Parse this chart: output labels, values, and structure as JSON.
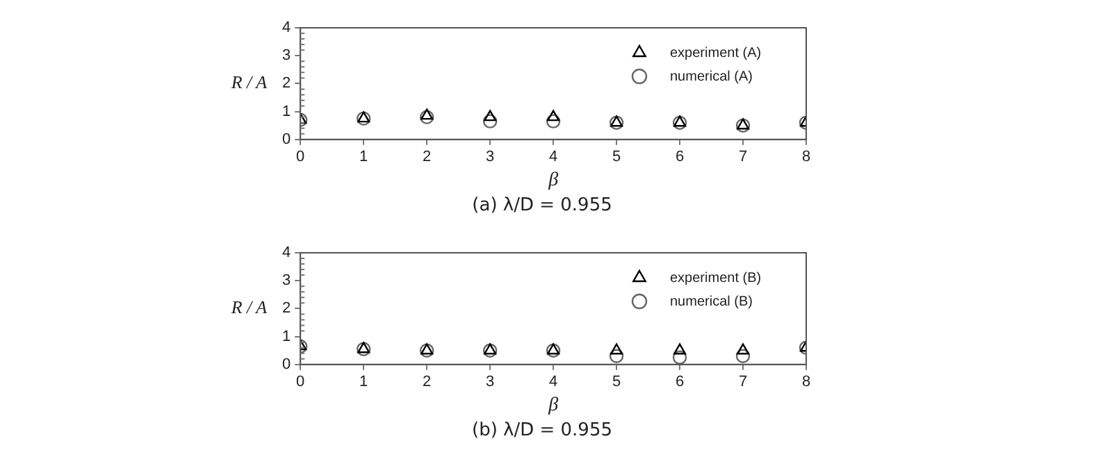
{
  "chart_data": [
    {
      "type": "scatter",
      "title": "(a) λ/D = 0.955",
      "xlabel": "β",
      "ylabel": "R / A",
      "xlim": [
        0,
        8
      ],
      "xticks": [
        0,
        1,
        2,
        3,
        4,
        5,
        6,
        7,
        8
      ],
      "ylim": [
        0,
        4
      ],
      "yticks": [
        0,
        1,
        2,
        3,
        4
      ],
      "grid": false,
      "legend": "top right",
      "series": [
        {
          "name": "experiment (A)",
          "color": "#000000",
          "marker": "triangle",
          "x": [
            0,
            1,
            2,
            3,
            4,
            5,
            6,
            7,
            8
          ],
          "values": [
            0.7,
            0.75,
            0.85,
            0.8,
            0.8,
            0.6,
            0.6,
            0.5,
            0.6
          ]
        },
        {
          "name": "numerical (A)",
          "color": "#666666",
          "marker": "circle",
          "x": [
            0,
            1,
            2,
            3,
            4,
            5,
            6,
            7,
            8
          ],
          "values": [
            0.7,
            0.75,
            0.8,
            0.65,
            0.65,
            0.6,
            0.6,
            0.5,
            0.6
          ]
        }
      ]
    },
    {
      "type": "scatter",
      "title": "(b) λ/D = 0.955",
      "xlabel": "β",
      "ylabel": "R / A",
      "xlim": [
        0,
        8
      ],
      "xticks": [
        0,
        1,
        2,
        3,
        4,
        5,
        6,
        7,
        8
      ],
      "ylim": [
        0,
        4
      ],
      "yticks": [
        0,
        1,
        2,
        3,
        4
      ],
      "grid": false,
      "legend": "top right",
      "series": [
        {
          "name": "experiment (B)",
          "color": "#000000",
          "marker": "triangle",
          "x": [
            0,
            1,
            2,
            3,
            4,
            5,
            6,
            7,
            8
          ],
          "values": [
            0.65,
            0.55,
            0.5,
            0.5,
            0.5,
            0.5,
            0.5,
            0.5,
            0.6
          ]
        },
        {
          "name": "numerical (B)",
          "color": "#666666",
          "marker": "circle",
          "x": [
            0,
            1,
            2,
            3,
            4,
            5,
            6,
            7,
            8
          ],
          "values": [
            0.65,
            0.55,
            0.5,
            0.5,
            0.5,
            0.3,
            0.25,
            0.3,
            0.6
          ]
        }
      ]
    }
  ]
}
